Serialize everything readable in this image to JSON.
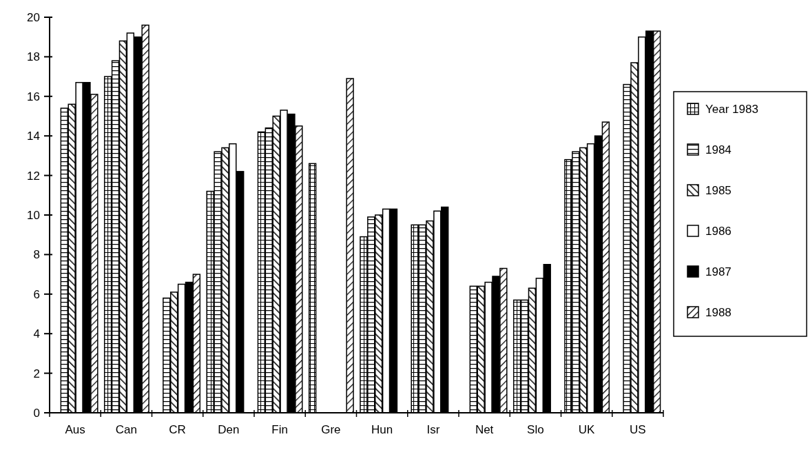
{
  "chart_data": {
    "type": "bar",
    "categories": [
      "Aus",
      "Can",
      "CR",
      "Den",
      "Fin",
      "Gre",
      "Hun",
      "Isr",
      "Net",
      "Slo",
      "UK",
      "US"
    ],
    "series": [
      {
        "name": "Year 1983",
        "color": "#000000",
        "values": [
          null,
          17.0,
          null,
          11.2,
          14.2,
          12.6,
          8.9,
          9.5,
          null,
          5.7,
          12.8,
          null
        ]
      },
      {
        "name": "1984",
        "color": "#000000",
        "values": [
          15.4,
          17.8,
          5.8,
          13.2,
          14.4,
          null,
          9.9,
          9.5,
          6.4,
          5.7,
          13.2,
          16.6
        ]
      },
      {
        "name": "1985",
        "color": "#000000",
        "values": [
          15.6,
          18.8,
          6.1,
          13.4,
          15.0,
          null,
          10.0,
          9.7,
          6.4,
          6.3,
          13.4,
          17.7
        ]
      },
      {
        "name": "1986",
        "color": "#ffffff",
        "values": [
          16.7,
          19.2,
          6.5,
          13.6,
          15.3,
          null,
          10.3,
          10.2,
          6.6,
          6.8,
          13.6,
          19.0
        ]
      },
      {
        "name": "1987",
        "color": "#000000",
        "values": [
          16.7,
          19.0,
          6.6,
          12.2,
          15.1,
          null,
          10.3,
          10.4,
          6.9,
          7.5,
          14.0,
          19.3
        ]
      },
      {
        "name": "1988",
        "color": "#000000",
        "values": [
          16.1,
          19.6,
          7.0,
          null,
          14.5,
          16.9,
          null,
          null,
          7.3,
          null,
          14.7,
          19.3
        ]
      }
    ],
    "ylim": [
      0,
      20
    ],
    "yticks": [
      0,
      2,
      4,
      6,
      8,
      10,
      12,
      14,
      16,
      18,
      20
    ],
    "grid": false,
    "legend": "right"
  }
}
